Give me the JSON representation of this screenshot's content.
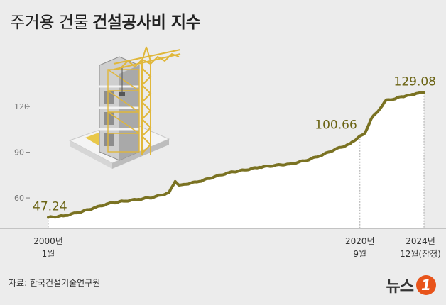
{
  "header": {
    "title_light": "주거용 건물",
    "title_bold": "건설공사비 지수"
  },
  "footer": {
    "source": "자료: 한국건설기술연구원",
    "logo_text": "뉴스",
    "logo_badge": "1"
  },
  "colors": {
    "line": "#7a7222",
    "area": "#ffffff",
    "value_label": "#6b6414",
    "background": "#ececec"
  },
  "illustration": {
    "icon": "building-construction-crane-icon"
  },
  "chart_data": {
    "type": "area",
    "title": "",
    "xlabel": "",
    "ylabel": "",
    "x_range": [
      "2000-01",
      "2024-12"
    ],
    "ylim": [
      40,
      135
    ],
    "y_ticks": [
      60,
      90,
      120
    ],
    "y_tick_labels": [
      "60",
      "90",
      "120"
    ],
    "x_tick_labels": [
      {
        "x": "2000-01",
        "line1": "2000년",
        "line2": "1월"
      },
      {
        "x": "2020-09",
        "line1": "2020년",
        "line2": "9월"
      },
      {
        "x": "2024-12",
        "line1": "2024년",
        "line2": "12월(잠정)"
      }
    ],
    "annotations": [
      {
        "x": "2000-01",
        "value": "47.24"
      },
      {
        "x": "2020-09",
        "value": "100.66"
      },
      {
        "x": "2024-12",
        "value": "129.08"
      }
    ],
    "series": [
      {
        "x": [
          "2000-01",
          "2001-01",
          "2002-01",
          "2003-01",
          "2004-01",
          "2005-01",
          "2006-01",
          "2007-01",
          "2008-01",
          "2008-06",
          "2008-09",
          "2009-01",
          "2010-01",
          "2011-01",
          "2012-01",
          "2013-01",
          "2014-01",
          "2015-01",
          "2016-01",
          "2017-01",
          "2018-01",
          "2019-01",
          "2020-01",
          "2020-09",
          "2021-01",
          "2021-06",
          "2022-01",
          "2022-06",
          "2023-01",
          "2023-06",
          "2024-01",
          "2024-06",
          "2024-12"
        ],
        "values": [
          47.24,
          48.2,
          50.5,
          53.3,
          56.4,
          57.9,
          59.1,
          60.5,
          63.4,
          70.8,
          68.4,
          68.9,
          70.8,
          73.8,
          76.7,
          78.3,
          80.1,
          81.3,
          82.3,
          84.4,
          87.5,
          91.8,
          95.4,
          100.66,
          102.5,
          112.0,
          118.6,
          124.4,
          125.0,
          126.5,
          127.5,
          128.6,
          129.08
        ]
      }
    ]
  }
}
